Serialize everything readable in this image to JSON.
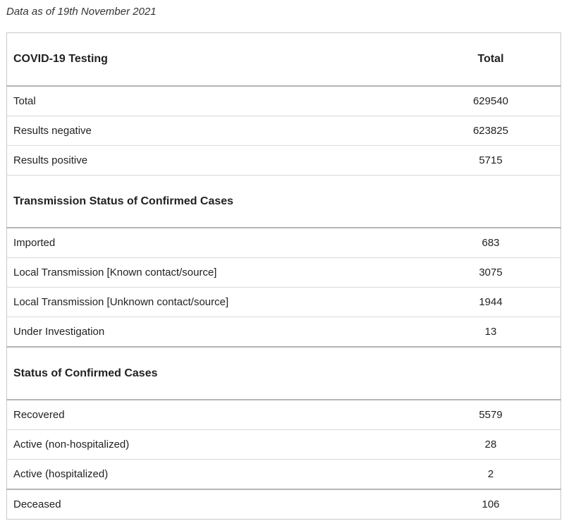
{
  "note": "Data as of 19th November 2021",
  "table": {
    "header": {
      "label": "COVID-19 Testing",
      "value_header": "Total"
    },
    "testing_rows": [
      {
        "label": "Total",
        "value": "629540"
      },
      {
        "label": "Results negative",
        "value": "623825"
      },
      {
        "label": "Results positive",
        "value": "5715"
      }
    ],
    "transmission_heading": "Transmission Status of Confirmed Cases",
    "transmission_rows": [
      {
        "label": "Imported",
        "value": "683"
      },
      {
        "label": "Local Transmission [Known contact/source]",
        "value": "3075"
      },
      {
        "label": "Local Transmission [Unknown contact/source]",
        "value": "1944"
      },
      {
        "label": "Under Investigation",
        "value": "13"
      }
    ],
    "status_heading": "Status of Confirmed Cases",
    "status_rows": [
      {
        "label": "Recovered",
        "value": "5579"
      },
      {
        "label": "Active (non-hospitalized)",
        "value": "28"
      },
      {
        "label": "Active (hospitalized)",
        "value": "2"
      },
      {
        "label": "Deceased",
        "value": "106"
      }
    ]
  }
}
